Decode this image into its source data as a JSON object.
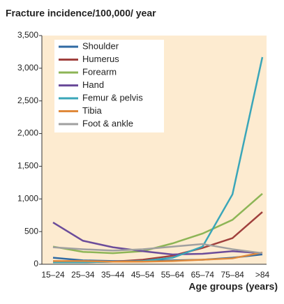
{
  "chart_data": {
    "type": "line",
    "title": "Fracture incidence/100,000/ year",
    "x_label": "Age groups (years)",
    "categories": [
      "15–24",
      "25–34",
      "35–44",
      "45–54",
      "55–64",
      "65–74",
      "75–84",
      ">84"
    ],
    "series": [
      {
        "name": "Shoulder",
        "color": "#2f6aa3",
        "values": [
          100,
          60,
          50,
          50,
          60,
          70,
          100,
          150
        ]
      },
      {
        "name": "Humerus",
        "color": "#a0403d",
        "values": [
          40,
          30,
          40,
          70,
          130,
          250,
          400,
          800
        ]
      },
      {
        "name": "Forearm",
        "color": "#8db556",
        "values": [
          270,
          190,
          170,
          200,
          320,
          470,
          680,
          1080
        ]
      },
      {
        "name": "Hand",
        "color": "#6b4c9a",
        "values": [
          640,
          360,
          260,
          200,
          150,
          160,
          200,
          170
        ]
      },
      {
        "name": "Femur & pelvis",
        "color": "#3aa6b9",
        "values": [
          30,
          30,
          40,
          50,
          100,
          270,
          1070,
          3170
        ]
      },
      {
        "name": "Tibia",
        "color": "#e08a3c",
        "values": [
          50,
          50,
          40,
          40,
          50,
          70,
          90,
          180
        ]
      },
      {
        "name": "Foot & ankle",
        "color": "#a0a0a0",
        "values": [
          260,
          230,
          210,
          230,
          270,
          310,
          230,
          170
        ]
      }
    ],
    "ylim": [
      0,
      3500
    ],
    "yticks": [
      0,
      500,
      {
        "value": 1000,
        "label": "1,000"
      },
      {
        "value": 1500,
        "label": "1,500"
      },
      {
        "value": 2000,
        "label": "2,000"
      },
      {
        "value": 2500,
        "label": "2,500"
      },
      {
        "value": 3000,
        "label": "3,000"
      },
      {
        "value": 3500,
        "label": "3,500"
      }
    ]
  }
}
